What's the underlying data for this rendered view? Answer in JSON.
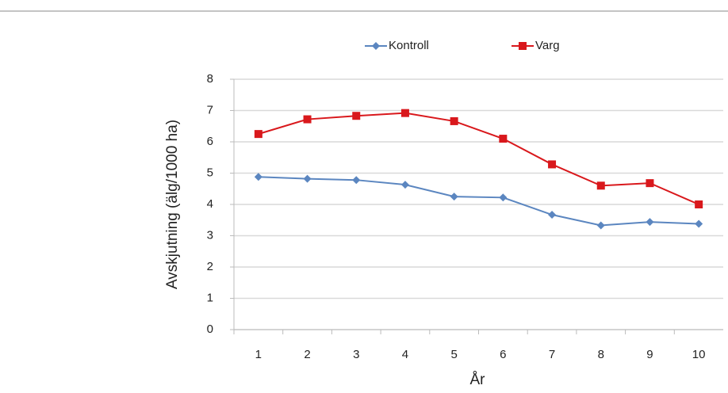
{
  "chart_data": {
    "type": "line",
    "x": [
      1,
      2,
      3,
      4,
      5,
      6,
      7,
      8,
      9,
      10
    ],
    "xlim": [
      0.5,
      10.5
    ],
    "xticks": [
      1,
      2,
      3,
      4,
      5,
      6,
      7,
      8,
      9,
      10
    ],
    "ylim": [
      0,
      8
    ],
    "yticks": [
      0,
      1,
      2,
      3,
      4,
      5,
      6,
      7,
      8
    ],
    "ylabel": "Avskjutning (älg/1000 ha)",
    "xlabel": "År",
    "grid": true,
    "legend": "top",
    "series": [
      {
        "name": "Kontroll",
        "color": "#5b86c0",
        "marker": "diamond",
        "values": [
          4.88,
          4.82,
          4.78,
          4.63,
          4.25,
          4.22,
          3.67,
          3.33,
          3.44,
          3.38
        ]
      },
      {
        "name": "Varg",
        "color": "#d9181c",
        "marker": "square",
        "values": [
          6.25,
          6.72,
          6.83,
          6.92,
          6.66,
          6.1,
          5.28,
          4.6,
          4.68,
          4.0
        ]
      }
    ]
  }
}
